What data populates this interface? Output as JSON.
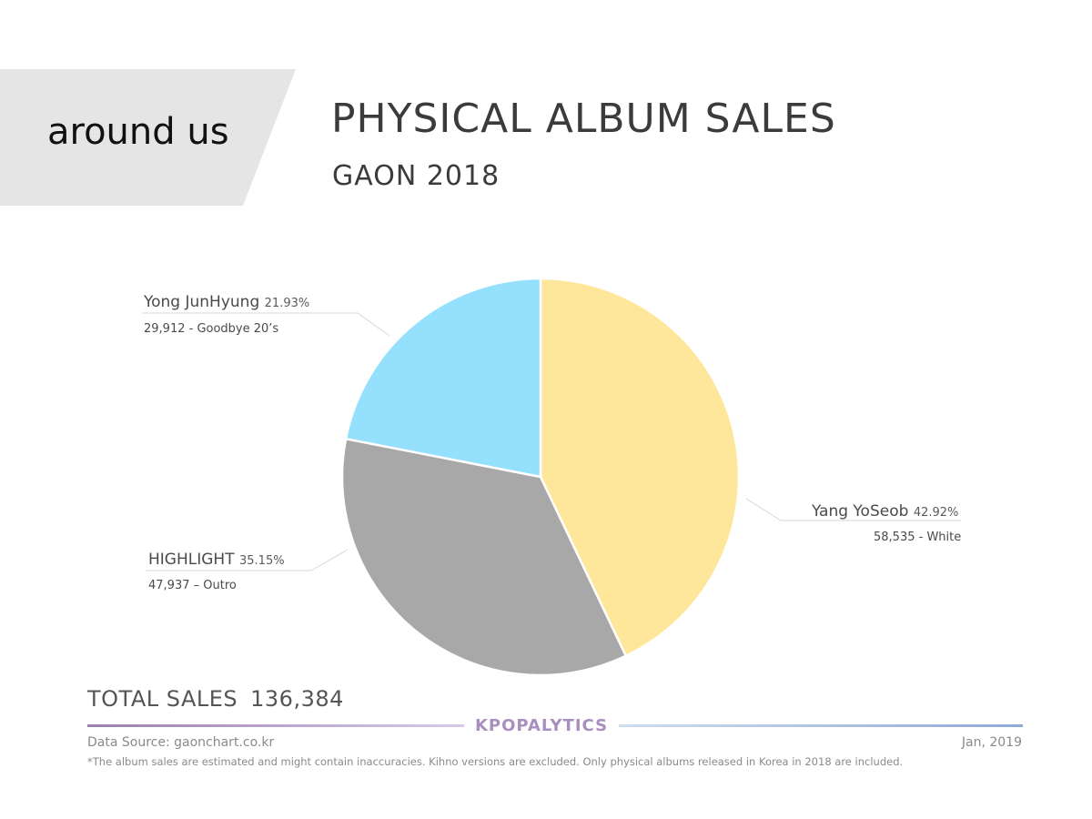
{
  "header": {
    "brand": "around us",
    "title": "PHYSICAL ALBUM SALES",
    "subtitle": "GAON 2018"
  },
  "colors": {
    "banner_bg": "#e5e5e5",
    "slice_yang": "#fee69a",
    "slice_highlight": "#a8a8a8",
    "slice_yong": "#94e0fd",
    "brand_purple": "#a98fbf",
    "gradient_end": "#8fa9d6"
  },
  "chart_data": {
    "type": "pie",
    "slices": [
      {
        "name": "Yang YoSeob",
        "percent": 42.92,
        "value": 58535,
        "pct_label": "42.92%",
        "detail": "58,535 - White",
        "color": "#fee69a"
      },
      {
        "name": "HIGHLIGHT",
        "percent": 35.15,
        "value": 47937,
        "pct_label": "35.15%",
        "detail": "47,937 – Outro",
        "color": "#a8a8a8"
      },
      {
        "name": "Yong JunHyung",
        "percent": 21.93,
        "value": 29912,
        "pct_label": "21.93%",
        "detail": "29,912 - Goodbye 20’s",
        "color": "#94e0fd"
      }
    ]
  },
  "summary": {
    "total_label": "TOTAL SALES",
    "total_value": "136,384"
  },
  "footer": {
    "brand": "KPOPALYTICS",
    "source": "Data Source: gaonchart.co.kr",
    "date": "Jan, 2019",
    "note": "*The album sales are estimated and might contain inaccuracies. Kihno versions are excluded. Only physical albums released in Korea in 2018 are included."
  }
}
